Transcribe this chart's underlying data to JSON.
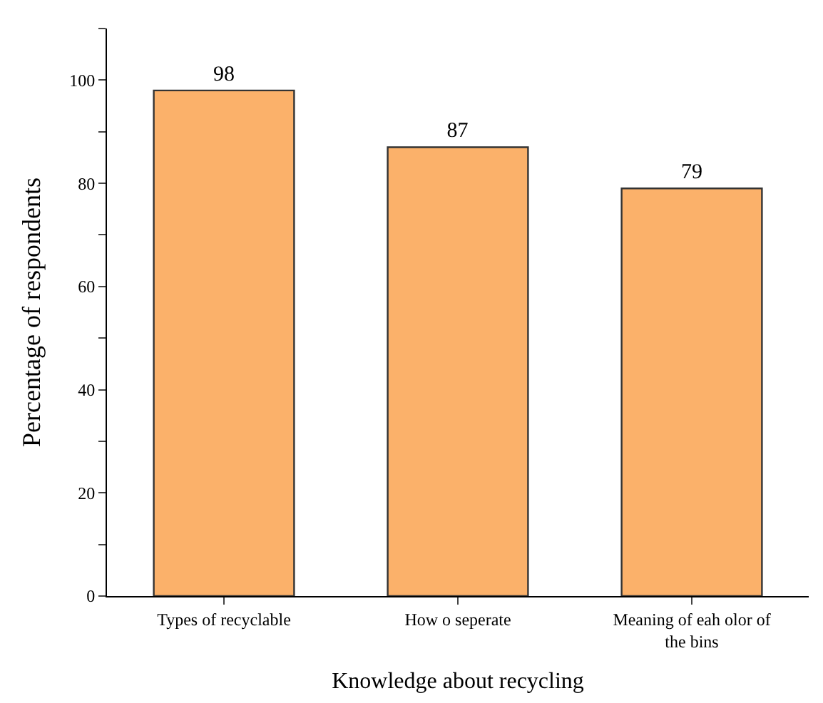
{
  "chart_data": {
    "type": "bar",
    "xlabel": "Knowledge about recycling",
    "ylabel": "Percentage of respondents",
    "categories": [
      "Types of recyclable",
      "How o seperate",
      "Meaning of eah olor of the bins"
    ],
    "values": [
      98,
      87,
      79
    ],
    "color": "#fbb16a",
    "data_labels": true,
    "ylim": [
      0,
      110
    ],
    "yticks": [
      0,
      {
        "value": 10,
        "label": null
      },
      20,
      {
        "value": 30,
        "label": null
      },
      40,
      {
        "value": 50,
        "label": null
      },
      60,
      {
        "value": 70,
        "label": null
      },
      80,
      {
        "value": 90,
        "label": null
      },
      100,
      {
        "value": 110,
        "label": null
      }
    ]
  }
}
